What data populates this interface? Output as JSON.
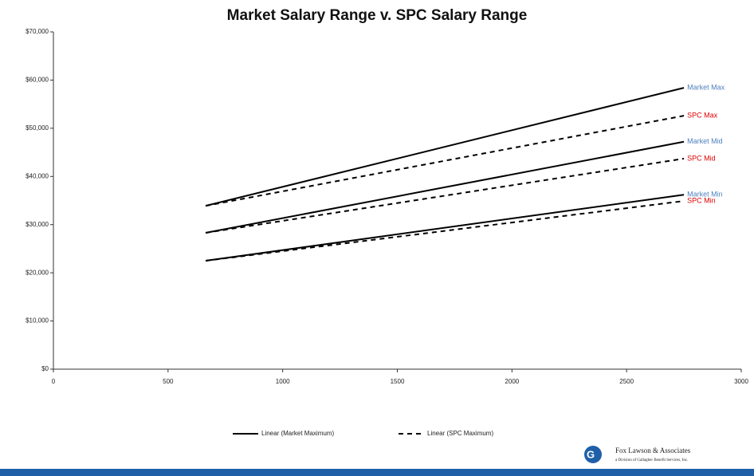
{
  "chart_data": {
    "type": "line",
    "title": "Market Salary Range v. SPC Salary Range",
    "x": [
      664,
      2750
    ],
    "series": [
      {
        "name": "Market Max",
        "color": "#000000",
        "label_color": "#4f81bd",
        "dashed": false,
        "values": [
          33900,
          58400
        ]
      },
      {
        "name": "SPC Max",
        "color": "#000000",
        "label_color": "#e00000",
        "dashed": true,
        "values": [
          33900,
          52600
        ]
      },
      {
        "name": "Market Mid",
        "color": "#000000",
        "label_color": "#4f81bd",
        "dashed": false,
        "values": [
          28300,
          47200
        ]
      },
      {
        "name": "SPC Mid",
        "color": "#000000",
        "label_color": "#e00000",
        "dashed": true,
        "values": [
          28300,
          43700
        ]
      },
      {
        "name": "Market Min",
        "color": "#000000",
        "label_color": "#4f81bd",
        "dashed": false,
        "values": [
          22500,
          36200
        ]
      },
      {
        "name": "SPC Min",
        "color": "#000000",
        "label_color": "#e00000",
        "dashed": true,
        "values": [
          22500,
          34900
        ]
      }
    ],
    "legend": [
      {
        "label": "Linear (Market Maximum)",
        "dashed": false
      },
      {
        "label": "Linear (SPC Maximum)",
        "dashed": true
      }
    ],
    "xlim": [
      0,
      3000
    ],
    "xticks": [
      0,
      500,
      1000,
      1500,
      2000,
      2500,
      3000
    ],
    "ylim": [
      0,
      70000
    ],
    "yticks": [
      {
        "value": 0,
        "label": "$0"
      },
      {
        "value": 10000,
        "label": "$10,000"
      },
      {
        "value": 20000,
        "label": "$20,000"
      },
      {
        "value": 30000,
        "label": "$30,000"
      },
      {
        "value": 40000,
        "label": "$40,000"
      },
      {
        "value": 50000,
        "label": "$50,000"
      },
      {
        "value": 60000,
        "label": "$60,000"
      },
      {
        "value": 70000,
        "label": "$70,000"
      }
    ],
    "grid": false
  },
  "footer": {
    "company": "Fox Lawson & Associates",
    "division": "a Division of Gallagher Benefit Services, Inc."
  }
}
